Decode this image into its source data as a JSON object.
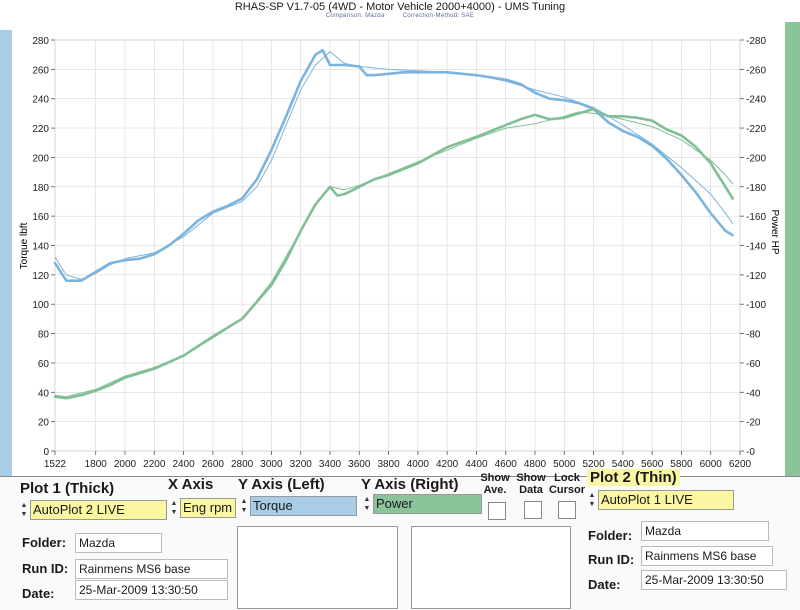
{
  "header": {
    "title": "RHAS-SP V1.7-05   (4WD - Motor Vehicle 2000+4000) - UMS Tuning",
    "comparison": "Comparison: Mazda",
    "correction": "Correction-Method: SAE"
  },
  "chart_data": {
    "type": "line",
    "ylabel_left": "Torque lbft",
    "ylabel_right": "Power HP",
    "xlim": [
      1522,
      6200
    ],
    "ylim_left": [
      0,
      280
    ],
    "ylim_right": [
      0,
      280
    ],
    "x_ticks": [
      "1522",
      "1800",
      "2000",
      "2200",
      "2400",
      "2600",
      "2800",
      "3000",
      "3200",
      "3400",
      "3600",
      "3800",
      "4000",
      "4200",
      "4400",
      "4600",
      "4800",
      "5000",
      "5200",
      "5400",
      "5600",
      "5800",
      "6000",
      "6200"
    ],
    "y_ticks_left": [
      "0",
      "20",
      "40",
      "60",
      "80",
      "100",
      "120",
      "140",
      "160",
      "180",
      "200",
      "220",
      "240",
      "260",
      "280"
    ],
    "y_ticks_right": [
      "0",
      "20",
      "40",
      "60",
      "80",
      "100",
      "120",
      "140",
      "160",
      "180",
      "200",
      "220",
      "240",
      "260",
      "280"
    ],
    "grid": true,
    "series": [
      {
        "name": "Torque",
        "plot": "Plot 1 (Thick)",
        "color": "#7db4de",
        "width": 2.6,
        "x": [
          1522,
          1600,
          1700,
          1800,
          1900,
          2000,
          2100,
          2200,
          2300,
          2400,
          2500,
          2600,
          2700,
          2800,
          2900,
          3000,
          3100,
          3200,
          3300,
          3350,
          3400,
          3500,
          3600,
          3650,
          3700,
          3800,
          3900,
          4000,
          4200,
          4400,
          4600,
          4700,
          4800,
          4900,
          5000,
          5100,
          5200,
          5300,
          5400,
          5500,
          5600,
          5700,
          5800,
          5900,
          6000,
          6100,
          6150
        ],
        "y": [
          128,
          116,
          116,
          122,
          128,
          130,
          131,
          134,
          140,
          148,
          157,
          163,
          167,
          172,
          185,
          205,
          228,
          252,
          270,
          273,
          263,
          263,
          262,
          256,
          256,
          257,
          258,
          258,
          258,
          256,
          253,
          250,
          244,
          240,
          239,
          237,
          233,
          224,
          218,
          214,
          208,
          199,
          188,
          176,
          162,
          150,
          147
        ]
      },
      {
        "name": "Power",
        "plot": "Plot 1 (Thick)",
        "color": "#82bf96",
        "width": 2.6,
        "x": [
          1522,
          1600,
          1700,
          1800,
          1900,
          2000,
          2200,
          2400,
          2600,
          2800,
          3000,
          3100,
          3200,
          3300,
          3400,
          3450,
          3500,
          3600,
          3700,
          3800,
          4000,
          4200,
          4400,
          4600,
          4700,
          4800,
          4900,
          5000,
          5100,
          5200,
          5300,
          5400,
          5500,
          5600,
          5700,
          5800,
          5900,
          6000,
          6100,
          6150
        ],
        "y": [
          37,
          36,
          38,
          41,
          45,
          50,
          56,
          65,
          78,
          90,
          113,
          130,
          150,
          168,
          180,
          174,
          175,
          180,
          185,
          188,
          196,
          207,
          214,
          222,
          226,
          229,
          226,
          227,
          230,
          233,
          228,
          228,
          227,
          225,
          219,
          215,
          207,
          196,
          180,
          172
        ]
      },
      {
        "name": "AutoPlot 1 LIVE",
        "plot": "Plot 2 (Thin)",
        "color": "#7db4de",
        "width": 1.0,
        "x": [
          1522,
          1600,
          1700,
          1800,
          1900,
          2000,
          2200,
          2400,
          2600,
          2800,
          2900,
          3000,
          3100,
          3200,
          3300,
          3400,
          3450,
          3500,
          3600,
          3700,
          3800,
          4000,
          4200,
          4400,
          4600,
          4800,
          5000,
          5200,
          5400,
          5600,
          5800,
          6000,
          6100,
          6150
        ],
        "y": [
          132,
          120,
          117,
          121,
          127,
          131,
          135,
          146,
          162,
          170,
          180,
          198,
          222,
          246,
          263,
          272,
          268,
          264,
          262,
          261,
          260,
          259,
          258,
          256,
          252,
          246,
          241,
          234,
          222,
          209,
          193,
          175,
          162,
          155
        ]
      },
      {
        "name": "AutoPlot 1 LIVE",
        "plot": "Plot 2 (Thin)",
        "color": "#82bf96",
        "width": 1.0,
        "x": [
          1522,
          1600,
          1800,
          2000,
          2200,
          2400,
          2600,
          2800,
          3000,
          3200,
          3350,
          3400,
          3500,
          3600,
          3800,
          4000,
          4200,
          4400,
          4600,
          4800,
          5000,
          5100,
          5200,
          5400,
          5600,
          5800,
          6000,
          6100,
          6150
        ],
        "y": [
          38,
          37,
          42,
          51,
          57,
          65,
          77,
          90,
          115,
          150,
          175,
          180,
          178,
          181,
          189,
          197,
          205,
          213,
          220,
          223,
          228,
          231,
          230,
          226,
          221,
          212,
          198,
          188,
          182
        ]
      }
    ]
  },
  "controls": {
    "plot1_label": "Plot 1 (Thick)",
    "x_axis_label": "X Axis",
    "y_left_label": "Y Axis (Left)",
    "y_right_label": "Y Axis (Right)",
    "show_ave_label": "Show Ave.",
    "show_data_label": "Show Data",
    "lock_cursor_label": "Lock Cursor",
    "plot2_label": "Plot 2 (Thin)",
    "plot1_value": "AutoPlot 2 LIVE",
    "x_axis_value": "Eng rpm",
    "y_left_value": "Torque",
    "y_right_value": "Power",
    "plot2_value": "AutoPlot 1 LIVE",
    "colors": {
      "yellow": "#fbf6a2",
      "blue": "#a9cde6",
      "green": "#8cc49a"
    }
  },
  "plot1_info": {
    "folder_label": "Folder:",
    "folder": "Mazda",
    "run_label": "Run ID:",
    "run": "Rainmens MS6 base",
    "date_label": "Date:",
    "date": "25-Mar-2009  13:30:50"
  },
  "plot2_info": {
    "folder_label": "Folder:",
    "folder": "Mazda",
    "run_label": "Run ID:",
    "run": "Rainmens MS6 base",
    "date_label": "Date:",
    "date": "25-Mar-2009  13:30:50"
  }
}
